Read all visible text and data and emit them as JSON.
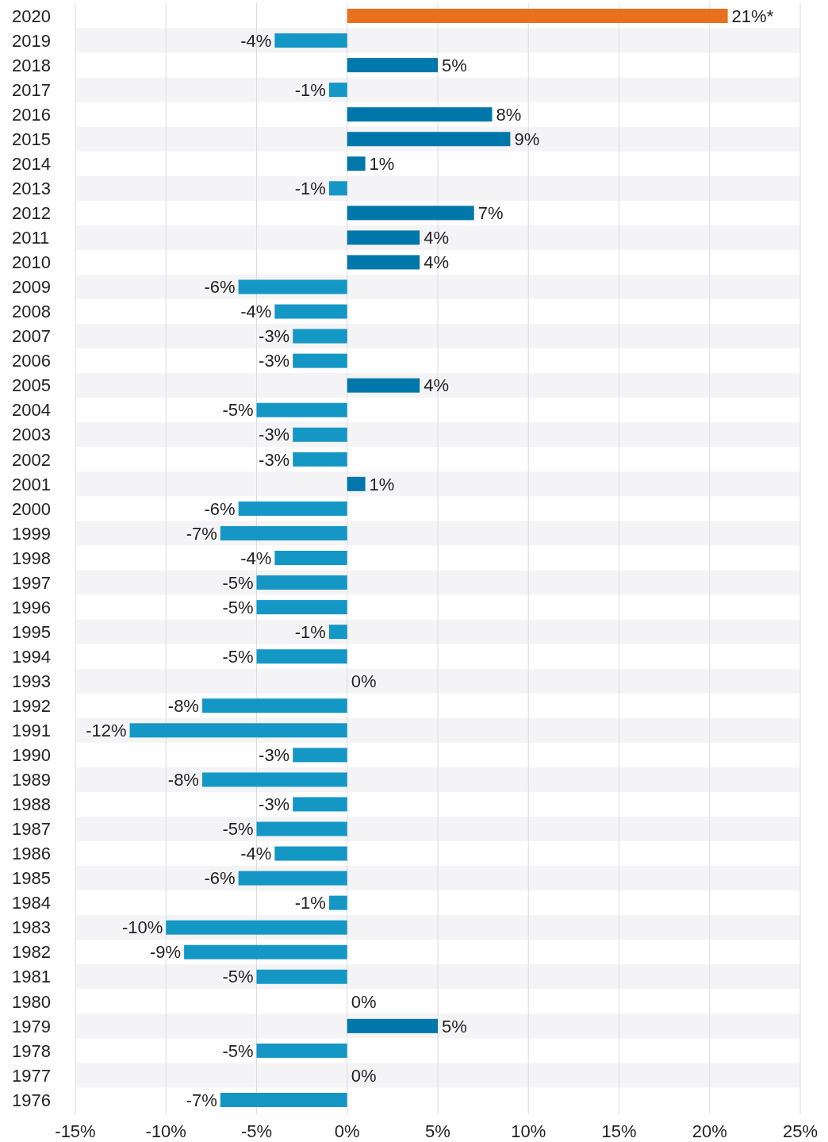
{
  "chart_data": {
    "type": "bar",
    "orientation": "horizontal",
    "categories": [
      "2020",
      "2019",
      "2018",
      "2017",
      "2016",
      "2015",
      "2014",
      "2013",
      "2012",
      "2011",
      "2010",
      "2009",
      "2008",
      "2007",
      "2006",
      "2005",
      "2004",
      "2003",
      "2002",
      "2001",
      "2000",
      "1999",
      "1998",
      "1997",
      "1996",
      "1995",
      "1994",
      "1993",
      "1992",
      "1991",
      "1990",
      "1989",
      "1988",
      "1987",
      "1986",
      "1985",
      "1984",
      "1983",
      "1982",
      "1981",
      "1980",
      "1979",
      "1978",
      "1977",
      "1976"
    ],
    "values": [
      21,
      -4,
      5,
      -1,
      8,
      9,
      1,
      -1,
      7,
      4,
      4,
      -6,
      -4,
      -3,
      -3,
      4,
      -5,
      -3,
      -3,
      1,
      -6,
      -7,
      -4,
      -5,
      -5,
      -1,
      -5,
      0,
      -8,
      -12,
      -3,
      -8,
      -3,
      -5,
      -4,
      -6,
      -1,
      -10,
      -9,
      -5,
      0,
      5,
      -5,
      0,
      -7
    ],
    "colors": [
      "#e8711e",
      "#1597c5",
      "#0077aa",
      "#1597c5",
      "#0077aa",
      "#0077aa",
      "#0077aa",
      "#1597c5",
      "#0077aa",
      "#0077aa",
      "#0077aa",
      "#1597c5",
      "#1597c5",
      "#1597c5",
      "#1597c5",
      "#0077aa",
      "#1597c5",
      "#1597c5",
      "#1597c5",
      "#0077aa",
      "#1597c5",
      "#1597c5",
      "#1597c5",
      "#1597c5",
      "#1597c5",
      "#1597c5",
      "#1597c5",
      "#0077aa",
      "#1597c5",
      "#1597c5",
      "#1597c5",
      "#1597c5",
      "#1597c5",
      "#1597c5",
      "#1597c5",
      "#1597c5",
      "#1597c5",
      "#1597c5",
      "#1597c5",
      "#1597c5",
      "#0077aa",
      "#0077aa",
      "#1597c5",
      "#0077aa",
      "#1597c5"
    ],
    "value_labels": [
      "21%*",
      "-4%",
      "5%",
      "-1%",
      "8%",
      "9%",
      "1%",
      "-1%",
      "7%",
      "4%",
      "4%",
      "-6%",
      "-4%",
      "-3%",
      "-3%",
      "4%",
      "-5%",
      "-3%",
      "-3%",
      "1%",
      "-6%",
      "-7%",
      "-4%",
      "-5%",
      "-5%",
      "-1%",
      "-5%",
      "0%",
      "-8%",
      "-12%",
      "-3%",
      "-8%",
      "-3%",
      "-5%",
      "-4%",
      "-6%",
      "-1%",
      "-10%",
      "-9%",
      "-5%",
      "0%",
      "5%",
      "-5%",
      "0%",
      "-7%"
    ],
    "xlim": [
      -15,
      25
    ],
    "xticks": [
      {
        "value": -15,
        "label": "-15%"
      },
      {
        "value": -10,
        "label": "-10%"
      },
      {
        "value": -5,
        "label": "-5%"
      },
      {
        "value": 0,
        "label": "0%"
      },
      {
        "value": 5,
        "label": "5%"
      },
      {
        "value": 10,
        "label": "10%"
      },
      {
        "value": 15,
        "label": "15%"
      },
      {
        "value": 20,
        "label": "20%"
      },
      {
        "value": 25,
        "label": "25%"
      }
    ],
    "grid": "x"
  }
}
